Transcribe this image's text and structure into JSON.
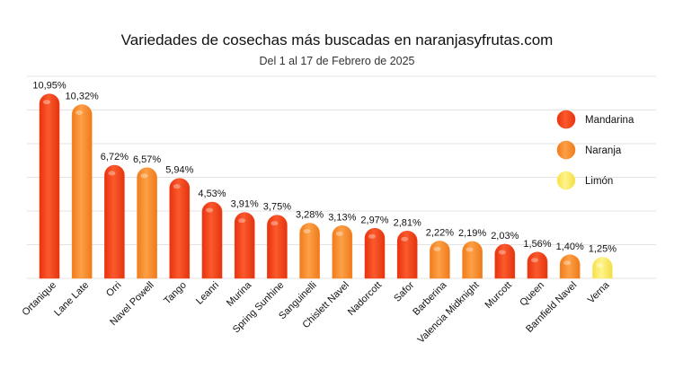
{
  "chart_data": {
    "type": "bar",
    "title": "Variedades de cosechas más buscadas en naranjasyfrutas.com",
    "subtitle": "Del 1 al 17 de Febrero de 2025",
    "categories": [
      "Ortanique",
      "Lane Late",
      "Orri",
      "Navel Powell",
      "Tango",
      "Leanri",
      "Murina",
      "Spring Sunhine",
      "Sanguinelli",
      "Chislett Navel",
      "Nadorcott",
      "Safor",
      "Barberina",
      "Valencia Midknight",
      "Murcott",
      "Queen",
      "Barnfield Navel",
      "Verna"
    ],
    "values": [
      10.95,
      10.32,
      6.72,
      6.57,
      5.94,
      4.53,
      3.91,
      3.75,
      3.28,
      3.13,
      2.97,
      2.81,
      2.22,
      2.19,
      2.03,
      1.56,
      1.4,
      1.25
    ],
    "value_labels": [
      "10,95%",
      "10,32%",
      "6,72%",
      "6,57%",
      "5,94%",
      "4,53%",
      "3,91%",
      "3,75%",
      "3,28%",
      "3,13%",
      "2,97%",
      "2,81%",
      "2,22%",
      "2,19%",
      "2,03%",
      "1,56%",
      "1,40%",
      "1,25%"
    ],
    "groups": [
      "Mandarina",
      "Naranja",
      "Mandarina",
      "Naranja",
      "Mandarina",
      "Mandarina",
      "Mandarina",
      "Mandarina",
      "Naranja",
      "Naranja",
      "Mandarina",
      "Mandarina",
      "Naranja",
      "Naranja",
      "Mandarina",
      "Mandarina",
      "Naranja",
      "Limón"
    ],
    "legend": [
      {
        "name": "Mandarina",
        "color": "#f4421f"
      },
      {
        "name": "Naranja",
        "color": "#f98b2b"
      },
      {
        "name": "Limón",
        "color": "#fbec6a"
      }
    ],
    "ylim": [
      0,
      12
    ],
    "grid": true,
    "legend_position": "top-right",
    "xlabel": "",
    "ylabel": ""
  }
}
